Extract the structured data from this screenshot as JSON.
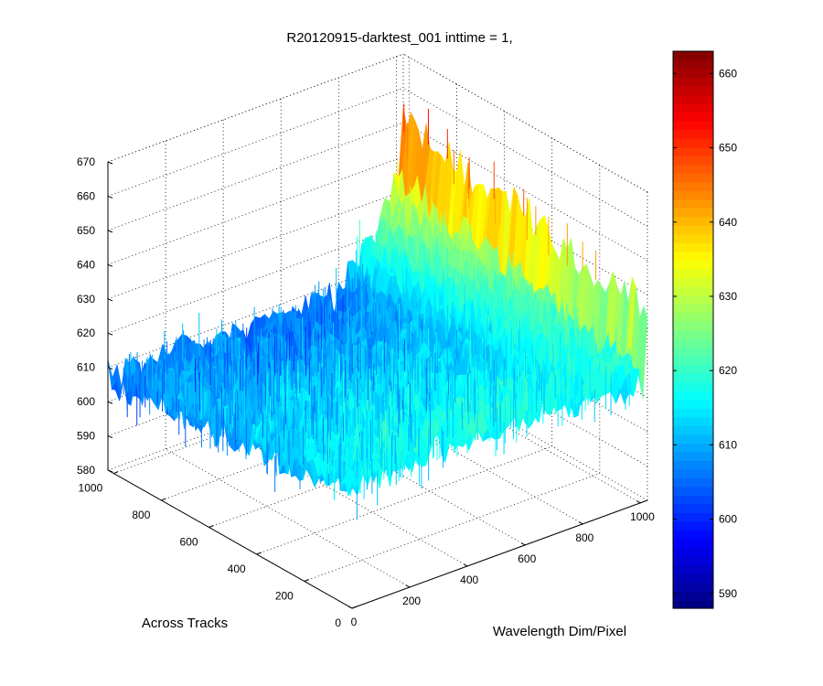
{
  "chart_data": {
    "type": "surface3d",
    "title": "R20120915-darktest_001 inttime = 1,",
    "xlabel": "Wavelength Dim/Pixel",
    "ylabel": "Across Tracks",
    "zlabel": "",
    "x_range": [
      0,
      1024
    ],
    "y_range": [
      0,
      1024
    ],
    "z_range": [
      580,
      670
    ],
    "x_ticks": [
      "0",
      "200",
      "400",
      "600",
      "800",
      "1000"
    ],
    "y_ticks": [
      "0",
      "200",
      "400",
      "600",
      "800",
      "1000"
    ],
    "z_ticks": [
      "580",
      "590",
      "600",
      "610",
      "620",
      "630",
      "640",
      "650",
      "660",
      "670"
    ],
    "grid": true,
    "colormap": "jet",
    "colorbar": {
      "range": [
        588,
        663
      ],
      "ticks": [
        "590",
        "600",
        "610",
        "620",
        "630",
        "640",
        "650",
        "660"
      ],
      "placement": "right"
    },
    "surface_profile": {
      "x_samples": [
        0,
        200,
        400,
        600,
        800,
        1024
      ],
      "mean_values_near_y0": [
        615,
        617,
        618,
        618,
        617,
        616
      ],
      "mean_values_near_y1000": [
        607,
        606,
        605,
        604,
        606,
        636
      ],
      "noise_amplitude": 6,
      "high_edge_at_x": 1024,
      "high_edge_value": 650
    }
  }
}
